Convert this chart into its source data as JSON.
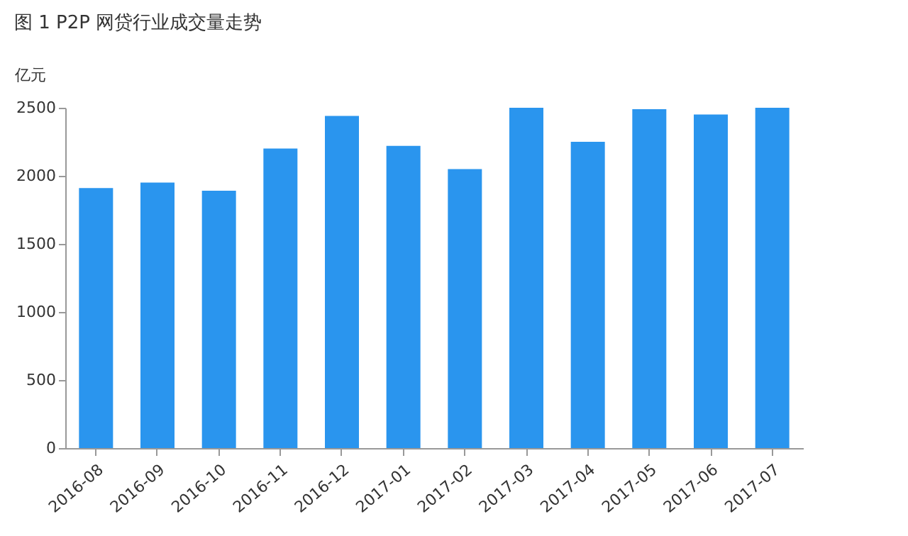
{
  "chart_data": {
    "type": "bar",
    "title": "图 1 P2P 网贷行业成交量走势",
    "ylabel": "亿元",
    "categories": [
      "2016-08",
      "2016-09",
      "2016-10",
      "2016-11",
      "2016-12",
      "2017-01",
      "2017-02",
      "2017-03",
      "2017-04",
      "2017-05",
      "2017-06",
      "2017-07"
    ],
    "values": [
      1910,
      1950,
      1890,
      2200,
      2440,
      2220,
      2050,
      2500,
      2250,
      2490,
      2450,
      2500
    ],
    "color": "#2a95ee",
    "ylim": [
      0,
      2500
    ],
    "yticks": [
      0,
      500,
      1000,
      1500,
      2000,
      2500
    ],
    "grid": false
  }
}
